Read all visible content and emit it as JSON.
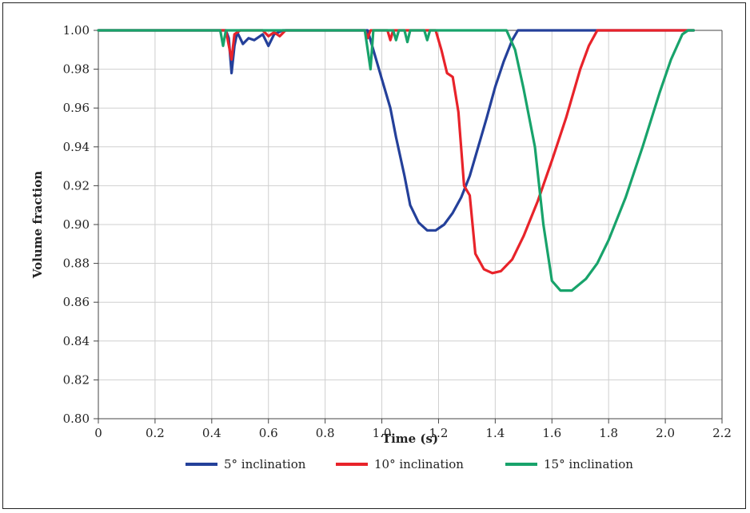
{
  "chart_data": {
    "type": "line",
    "title": "",
    "xlabel": "Time (s)",
    "ylabel": "Volume fraction",
    "xlim": [
      0,
      2.2
    ],
    "ylim": [
      0.8,
      1.0
    ],
    "x_ticks": [
      "0",
      "0.2",
      "0.4",
      "0.6",
      "0.8",
      "1.0",
      "1.2",
      "1.4",
      "1.6",
      "1.8",
      "2.0",
      "2.2"
    ],
    "y_ticks": [
      "0.80",
      "0.82",
      "0.84",
      "0.86",
      "0.88",
      "0.90",
      "0.92",
      "0.94",
      "0.96",
      "0.98",
      "1.00"
    ],
    "grid": true,
    "legend_position": "bottom",
    "series": [
      {
        "name": "5° inclination",
        "color": "#24409a",
        "points": [
          [
            0,
            1.0
          ],
          [
            0.45,
            1.0
          ],
          [
            0.46,
            0.996
          ],
          [
            0.47,
            0.978
          ],
          [
            0.48,
            0.992
          ],
          [
            0.49,
            0.999
          ],
          [
            0.5,
            0.996
          ],
          [
            0.51,
            0.993
          ],
          [
            0.53,
            0.996
          ],
          [
            0.55,
            0.995
          ],
          [
            0.58,
            0.998
          ],
          [
            0.6,
            0.992
          ],
          [
            0.62,
            0.998
          ],
          [
            0.65,
            1.0
          ],
          [
            0.7,
            1.0
          ],
          [
            0.95,
            1.0
          ],
          [
            0.97,
            0.99
          ],
          [
            1.0,
            0.975
          ],
          [
            1.03,
            0.96
          ],
          [
            1.05,
            0.945
          ],
          [
            1.08,
            0.925
          ],
          [
            1.1,
            0.91
          ],
          [
            1.13,
            0.901
          ],
          [
            1.16,
            0.897
          ],
          [
            1.19,
            0.897
          ],
          [
            1.22,
            0.9
          ],
          [
            1.25,
            0.906
          ],
          [
            1.28,
            0.914
          ],
          [
            1.31,
            0.925
          ],
          [
            1.34,
            0.94
          ],
          [
            1.37,
            0.955
          ],
          [
            1.4,
            0.971
          ],
          [
            1.43,
            0.984
          ],
          [
            1.46,
            0.995
          ],
          [
            1.48,
            1.0
          ],
          [
            2.1,
            1.0
          ]
        ]
      },
      {
        "name": "10° inclination",
        "color": "#e8232a",
        "points": [
          [
            0,
            1.0
          ],
          [
            0.45,
            1.0
          ],
          [
            0.47,
            0.985
          ],
          [
            0.48,
            0.998
          ],
          [
            0.5,
            1.0
          ],
          [
            0.58,
            1.0
          ],
          [
            0.6,
            0.997
          ],
          [
            0.62,
            0.999
          ],
          [
            0.64,
            0.997
          ],
          [
            0.66,
            1.0
          ],
          [
            0.94,
            1.0
          ],
          [
            0.95,
            0.996
          ],
          [
            0.96,
            1.0
          ],
          [
            1.02,
            1.0
          ],
          [
            1.03,
            0.995
          ],
          [
            1.04,
            1.0
          ],
          [
            1.19,
            1.0
          ],
          [
            1.21,
            0.99
          ],
          [
            1.23,
            0.978
          ],
          [
            1.25,
            0.976
          ],
          [
            1.27,
            0.958
          ],
          [
            1.29,
            0.92
          ],
          [
            1.31,
            0.915
          ],
          [
            1.33,
            0.885
          ],
          [
            1.36,
            0.877
          ],
          [
            1.39,
            0.875
          ],
          [
            1.42,
            0.876
          ],
          [
            1.46,
            0.882
          ],
          [
            1.5,
            0.894
          ],
          [
            1.55,
            0.912
          ],
          [
            1.6,
            0.933
          ],
          [
            1.65,
            0.955
          ],
          [
            1.7,
            0.98
          ],
          [
            1.73,
            0.992
          ],
          [
            1.76,
            1.0
          ],
          [
            2.1,
            1.0
          ]
        ]
      },
      {
        "name": "15° inclination",
        "color": "#18a36b",
        "points": [
          [
            0,
            1.0
          ],
          [
            0.43,
            1.0
          ],
          [
            0.44,
            0.992
          ],
          [
            0.45,
            1.0
          ],
          [
            0.94,
            1.0
          ],
          [
            0.96,
            0.98
          ],
          [
            0.97,
            1.0
          ],
          [
            1.04,
            1.0
          ],
          [
            1.05,
            0.995
          ],
          [
            1.06,
            1.0
          ],
          [
            1.08,
            1.0
          ],
          [
            1.09,
            0.994
          ],
          [
            1.1,
            1.0
          ],
          [
            1.15,
            1.0
          ],
          [
            1.16,
            0.995
          ],
          [
            1.17,
            1.0
          ],
          [
            1.44,
            1.0
          ],
          [
            1.47,
            0.99
          ],
          [
            1.5,
            0.97
          ],
          [
            1.54,
            0.94
          ],
          [
            1.57,
            0.9
          ],
          [
            1.6,
            0.871
          ],
          [
            1.63,
            0.866
          ],
          [
            1.67,
            0.866
          ],
          [
            1.72,
            0.872
          ],
          [
            1.76,
            0.88
          ],
          [
            1.8,
            0.892
          ],
          [
            1.86,
            0.914
          ],
          [
            1.92,
            0.94
          ],
          [
            1.98,
            0.968
          ],
          [
            2.02,
            0.985
          ],
          [
            2.06,
            0.998
          ],
          [
            2.08,
            1.0
          ],
          [
            2.1,
            1.0
          ]
        ]
      }
    ]
  }
}
